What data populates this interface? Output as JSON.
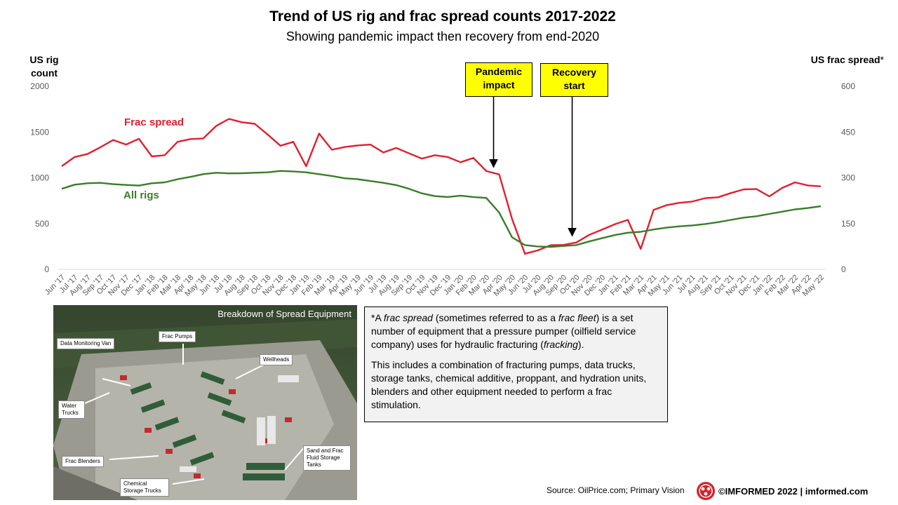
{
  "header": {
    "title": "Trend of US rig and frac spread counts 2017-2022",
    "subtitle": "Showing pandemic impact then recovery from end-2020"
  },
  "axes": {
    "left_label": "US rig count",
    "right_label": "US frac spread",
    "right_label_marker": "*"
  },
  "callouts": {
    "pandemic": "Pandemic impact",
    "recovery": "Recovery start"
  },
  "series_labels": {
    "frac": "Frac spread",
    "rigs": "All rigs"
  },
  "colors": {
    "frac": "#e0202e",
    "rigs": "#3a7d2a",
    "callout_bg": "#ffff00",
    "axis_text": "#595959"
  },
  "chart_data": {
    "type": "line",
    "title": "Trend of US rig and frac spread counts 2017-2022",
    "subtitle": "Showing pandemic impact then recovery from end-2020",
    "categories": [
      "Jun '17",
      "Jul '17",
      "Aug '17",
      "Sep '17",
      "Oct '17",
      "Nov '17",
      "Dec '17",
      "Jan '18",
      "Feb '18",
      "Mar '18",
      "Apr '18",
      "May '18",
      "Jun '18",
      "Jul '18",
      "Aug '18",
      "Sep '18",
      "Oct '18",
      "Nov '18",
      "Dec '18",
      "Jan '19",
      "Feb '19",
      "Mar '19",
      "Apr '19",
      "May '19",
      "Jun '19",
      "Jul '19",
      "Aug '19",
      "Sep '19",
      "Oct '19",
      "Nov '19",
      "Dec '19",
      "Jan '20",
      "Feb '20",
      "Mar '20",
      "Apr '20",
      "May '20",
      "Jun '20",
      "Jul '20",
      "Aug '20",
      "Sep '20",
      "Oct '20",
      "Nov '20",
      "Dec '20",
      "Jan '21",
      "Feb '21",
      "Mar '21",
      "Apr '21",
      "May '21",
      "Jun '21",
      "Jul '21",
      "Aug '21",
      "Sep '21",
      "Oct '21",
      "Nov '21",
      "Dec '21",
      "Jan '22",
      "Feb '22",
      "Mar '22",
      "Apr '22",
      "May '22"
    ],
    "y_left": {
      "label": "US rig count",
      "range": [
        0,
        2000
      ],
      "ticks": [
        "0",
        "500",
        "1000",
        "1500",
        "2000"
      ]
    },
    "y_right": {
      "label": "US frac spread*",
      "range": [
        0,
        600
      ],
      "ticks": [
        "0",
        "150",
        "300",
        "450",
        "600"
      ]
    },
    "series": [
      {
        "name": "Frac spread",
        "axis": "right",
        "values": [
          338,
          368,
          378,
          400,
          424,
          409,
          428,
          370,
          374,
          418,
          427,
          429,
          470,
          493,
          482,
          477,
          442,
          405,
          418,
          338,
          445,
          392,
          401,
          406,
          409,
          383,
          398,
          380,
          363,
          374,
          368,
          351,
          365,
          322,
          311,
          165,
          51,
          62,
          79,
          80,
          88,
          113,
          130,
          148,
          162,
          67,
          195,
          210,
          218,
          222,
          233,
          236,
          250,
          262,
          263,
          239,
          267,
          285,
          275,
          272
        ]
      },
      {
        "name": "All rigs",
        "axis": "left",
        "values": [
          880,
          925,
          940,
          945,
          930,
          922,
          915,
          940,
          950,
          985,
          1010,
          1040,
          1055,
          1048,
          1050,
          1055,
          1060,
          1075,
          1070,
          1060,
          1040,
          1020,
          995,
          985,
          965,
          945,
          920,
          880,
          830,
          800,
          790,
          805,
          790,
          780,
          620,
          350,
          265,
          250,
          245,
          255,
          265,
          305,
          340,
          375,
          400,
          410,
          435,
          455,
          470,
          480,
          495,
          515,
          540,
          565,
          580,
          605,
          630,
          655,
          670,
          690
        ]
      }
    ],
    "annotations": [
      "Pandemic impact",
      "Recovery start"
    ],
    "grid": false,
    "legend": "inline labels"
  },
  "photo": {
    "title": "Breakdown of Spread Equipment",
    "labels": [
      "Data Monitoring Van",
      "Frac Pumps",
      "Wellheads",
      "Water Trucks",
      "Sand and Frac Fluid Storage Tanks",
      "Frac Blenders",
      "Chemical Storage Trucks"
    ]
  },
  "note": {
    "p1_pre": "*A ",
    "p1_term1": "frac spread",
    "p1_mid1": " (sometimes referred to as a ",
    "p1_term2": "frac fleet",
    "p1_mid2": ") is a set number of equipment that a pressure pumper (oilfield service company) uses for hydraulic fracturing (",
    "p1_term3": "fracking",
    "p1_end": ").",
    "p2": "This includes a combination of fracturing pumps, data trucks, storage tanks, chemical additive, proppant, and hydration units, blenders and other equipment needed to perform a frac stimulation."
  },
  "footer": {
    "source": "Source: OilPrice.com; Primary Vision",
    "brand": "©IMFORMED 2022  | imformed.com"
  }
}
